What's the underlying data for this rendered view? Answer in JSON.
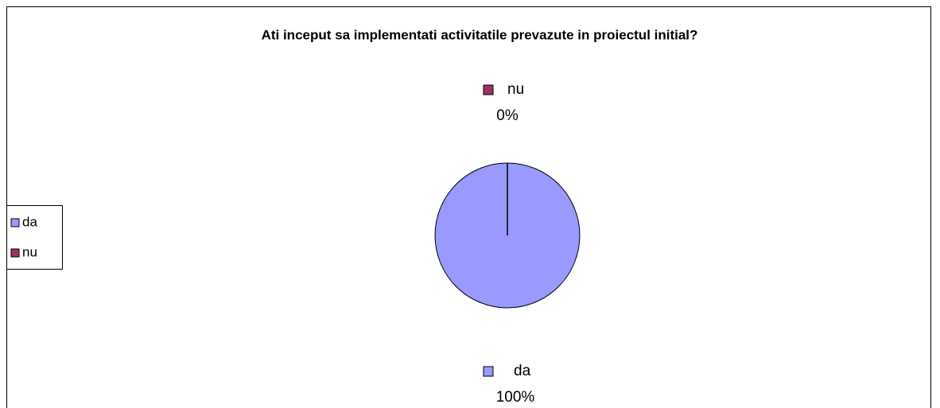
{
  "chart_data": {
    "type": "pie",
    "title": "Ati inceput sa implementati activitatile prevazute in proiectul initial?",
    "categories": [
      "da",
      "nu"
    ],
    "values": [
      100,
      0
    ],
    "value_labels": [
      "100%",
      "0%"
    ],
    "colors": [
      "#9999ff",
      "#993366"
    ],
    "legend": "left"
  }
}
